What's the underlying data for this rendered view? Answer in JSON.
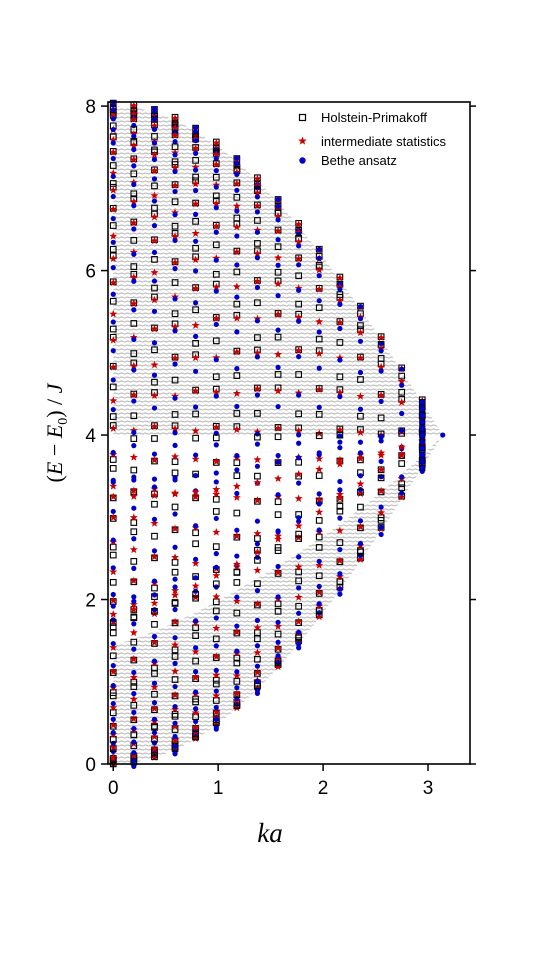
{
  "chart_data": {
    "type": "scatter",
    "title": "",
    "xlabel": "ka",
    "ylabel": "(E − E0) / J",
    "ylabel_parts": {
      "open": "(",
      "E1": "E",
      "minus": " − ",
      "E2": "E",
      "sub": "0",
      "rest": ") / ",
      "J": "J"
    },
    "xlim": [
      -0.05,
      3.4
    ],
    "ylim": [
      0,
      8.05
    ],
    "xticks": [
      0,
      1,
      2,
      3
    ],
    "yticks": [
      0,
      2,
      4,
      6,
      8
    ],
    "grid": false,
    "legend_position": "top-right",
    "x_values": [
      0.0,
      0.196,
      0.393,
      0.589,
      0.785,
      0.982,
      1.178,
      1.374,
      1.571,
      1.767,
      1.963,
      2.16,
      2.356,
      2.553,
      2.749,
      2.945
    ],
    "band_upper_limit": "4 + 4·cos(k/2)",
    "band_lower_limit": "4 − 4·cos(k/2)",
    "series": [
      {
        "name": "Holstein-Primakoff",
        "marker": "open-square",
        "color": "#000000"
      },
      {
        "name": "intermediate statistics",
        "marker": "star",
        "color": "#cc0000"
      },
      {
        "name": "Bethe ansatz",
        "marker": "filled-circle",
        "color": "#0000cc"
      }
    ],
    "colors": {
      "band_fill": "#c4c4c4",
      "axis": "#000000"
    }
  }
}
